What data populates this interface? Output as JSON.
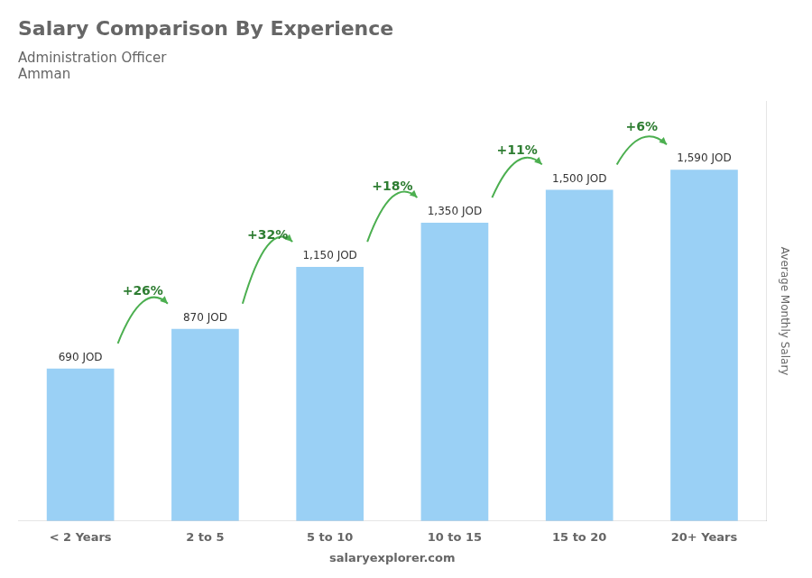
{
  "chart_data": {
    "type": "bar",
    "title": "Salary Comparison By Experience",
    "subtitle": [
      "Administration Officer",
      "Amman"
    ],
    "ylabel": "Average Monthly Salary",
    "xlabel": "salaryexplorer.com",
    "categories": [
      "< 2 Years",
      "2 to 5",
      "5 to 10",
      "10 to 15",
      "15 to 20",
      "20+ Years"
    ],
    "values": [
      690,
      870,
      1150,
      1350,
      1500,
      1590
    ],
    "value_labels": [
      "690 JOD",
      "870 JOD",
      "1,150 JOD",
      "1,350 JOD",
      "1,500 JOD",
      "1,590 JOD"
    ],
    "data_labels": true,
    "annotations": [
      "+26%",
      "+32%",
      "+18%",
      "+11%",
      "+6%"
    ],
    "ylim": [
      0,
      1900
    ],
    "tick_labels": "x",
    "grid": false
  }
}
